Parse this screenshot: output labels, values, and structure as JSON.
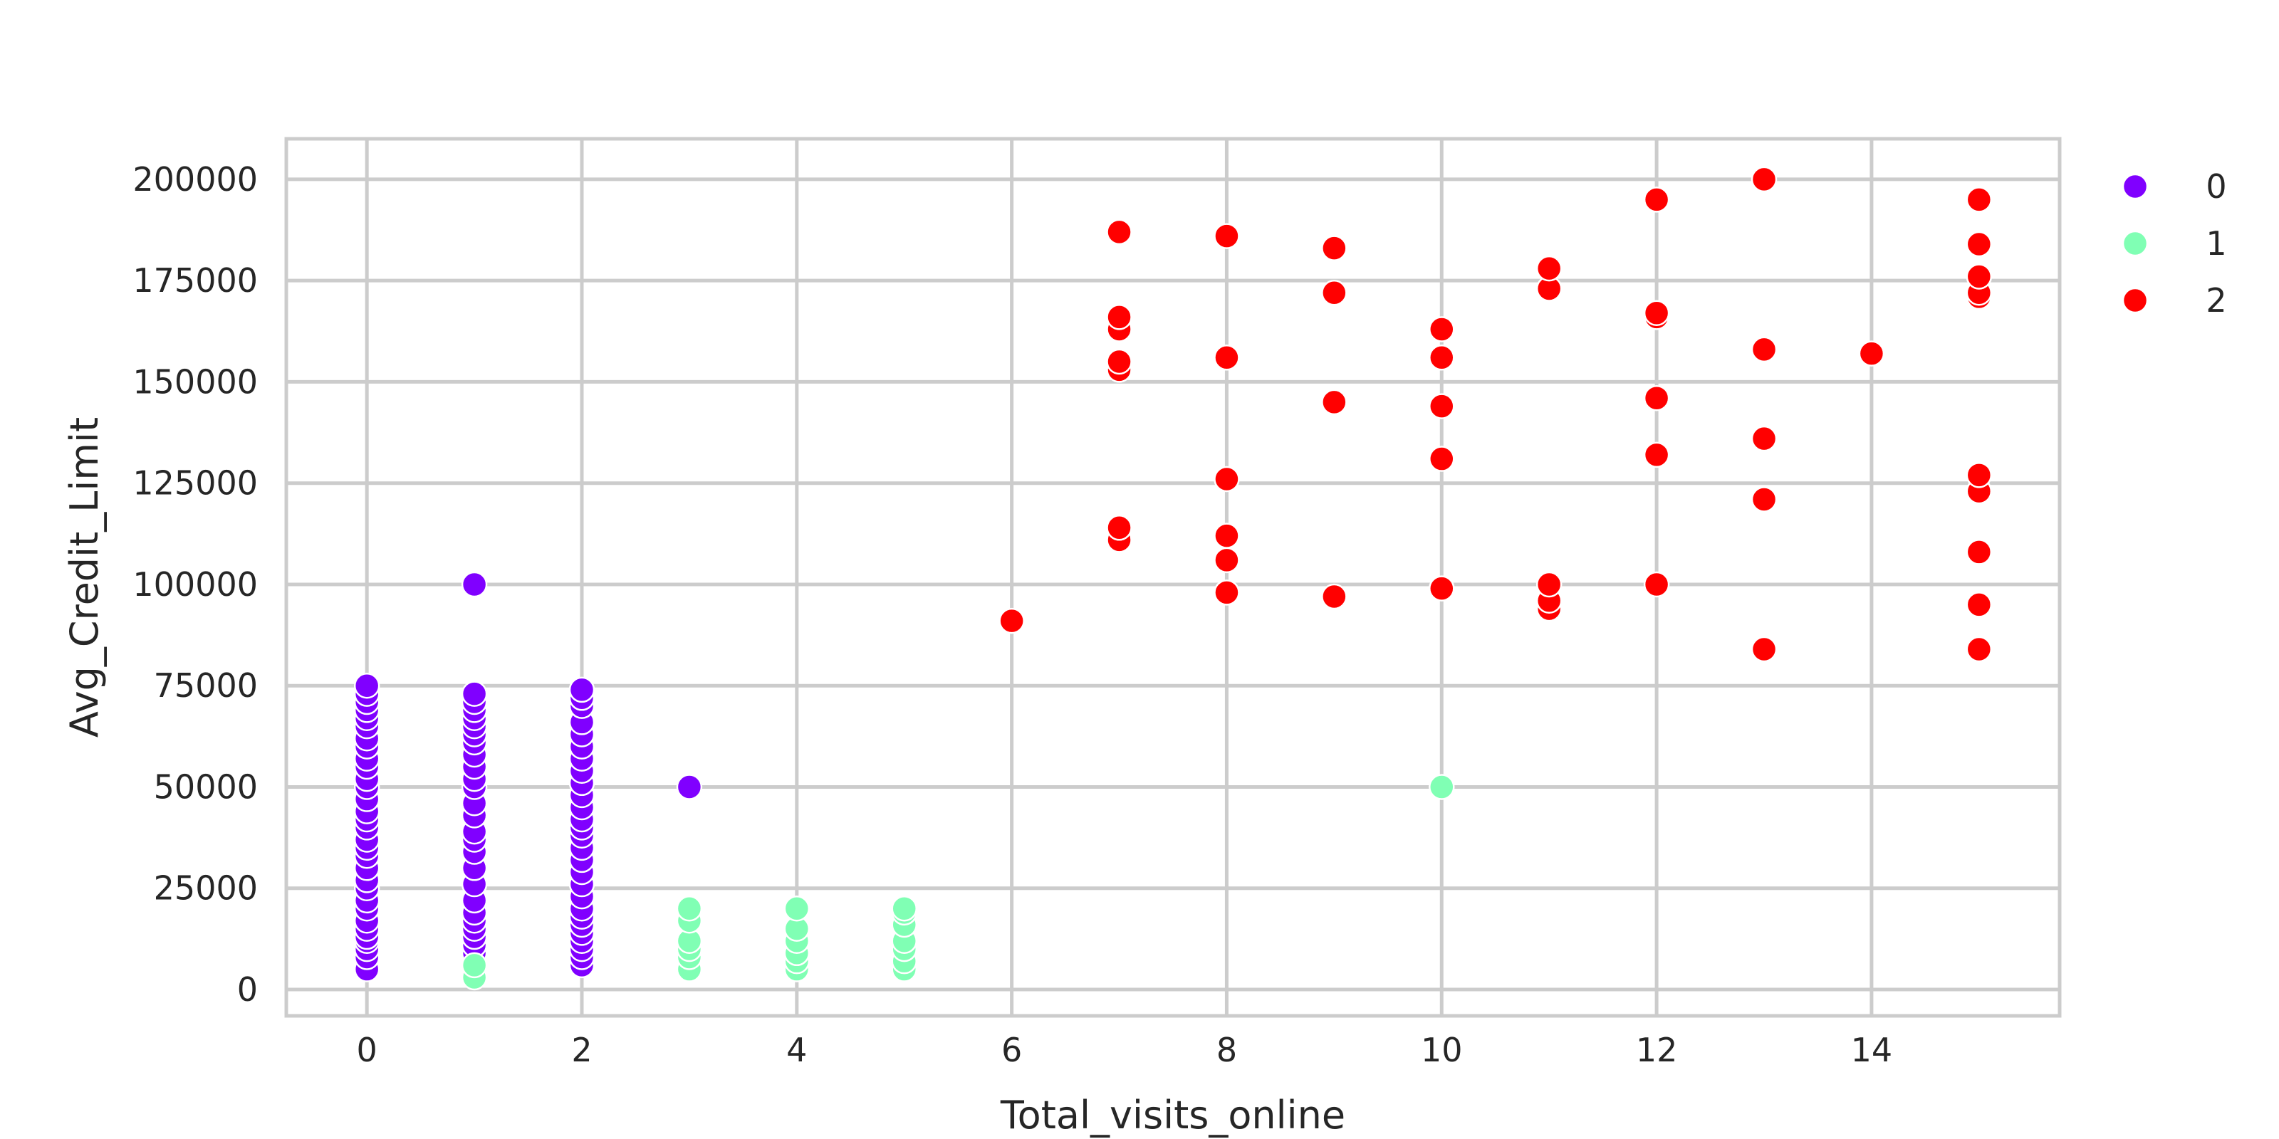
{
  "chart_data": {
    "type": "scatter",
    "title": "",
    "xlabel": "Total_visits_online",
    "ylabel": "Avg_Credit_Limit",
    "xlim": [
      -0.75,
      15.75
    ],
    "ylim": [
      -6500,
      210000
    ],
    "xticks": [
      0,
      2,
      4,
      6,
      8,
      10,
      12,
      14
    ],
    "yticks": [
      0,
      25000,
      50000,
      75000,
      100000,
      125000,
      150000,
      175000,
      200000
    ],
    "grid": true,
    "legend": {
      "placement": "outside-top-right",
      "entries": [
        "0",
        "1",
        "2"
      ]
    },
    "series": [
      {
        "name": "0",
        "color": "#8000ff",
        "points": [
          [
            0,
            5000
          ],
          [
            0,
            8000
          ],
          [
            0,
            10000
          ],
          [
            0,
            12000
          ],
          [
            0,
            13000
          ],
          [
            0,
            15000
          ],
          [
            0,
            17000
          ],
          [
            0,
            20000
          ],
          [
            0,
            22000
          ],
          [
            0,
            25000
          ],
          [
            0,
            27000
          ],
          [
            0,
            30000
          ],
          [
            0,
            33000
          ],
          [
            0,
            35000
          ],
          [
            0,
            37000
          ],
          [
            0,
            40000
          ],
          [
            0,
            42000
          ],
          [
            0,
            44000
          ],
          [
            0,
            47000
          ],
          [
            0,
            50000
          ],
          [
            0,
            52000
          ],
          [
            0,
            55000
          ],
          [
            0,
            57000
          ],
          [
            0,
            60000
          ],
          [
            0,
            62000
          ],
          [
            0,
            65000
          ],
          [
            0,
            67000
          ],
          [
            0,
            69000
          ],
          [
            0,
            71000
          ],
          [
            0,
            73000
          ],
          [
            0,
            75000
          ],
          [
            1,
            5000
          ],
          [
            1,
            7000
          ],
          [
            1,
            9000
          ],
          [
            1,
            11000
          ],
          [
            1,
            13000
          ],
          [
            1,
            15000
          ],
          [
            1,
            17000
          ],
          [
            1,
            19000
          ],
          [
            1,
            22000
          ],
          [
            1,
            26000
          ],
          [
            1,
            30000
          ],
          [
            1,
            34000
          ],
          [
            1,
            37000
          ],
          [
            1,
            39000
          ],
          [
            1,
            43000
          ],
          [
            1,
            46000
          ],
          [
            1,
            50000
          ],
          [
            1,
            52000
          ],
          [
            1,
            55000
          ],
          [
            1,
            58000
          ],
          [
            1,
            61000
          ],
          [
            1,
            63000
          ],
          [
            1,
            65000
          ],
          [
            1,
            67000
          ],
          [
            1,
            69000
          ],
          [
            1,
            71000
          ],
          [
            1,
            73000
          ],
          [
            1,
            100000
          ],
          [
            2,
            6000
          ],
          [
            2,
            8000
          ],
          [
            2,
            10000
          ],
          [
            2,
            12000
          ],
          [
            2,
            14000
          ],
          [
            2,
            16000
          ],
          [
            2,
            18000
          ],
          [
            2,
            20000
          ],
          [
            2,
            23000
          ],
          [
            2,
            26000
          ],
          [
            2,
            29000
          ],
          [
            2,
            32000
          ],
          [
            2,
            35000
          ],
          [
            2,
            38000
          ],
          [
            2,
            40000
          ],
          [
            2,
            42000
          ],
          [
            2,
            45000
          ],
          [
            2,
            48000
          ],
          [
            2,
            51000
          ],
          [
            2,
            54000
          ],
          [
            2,
            57000
          ],
          [
            2,
            60000
          ],
          [
            2,
            63000
          ],
          [
            2,
            66000
          ],
          [
            2,
            70000
          ],
          [
            2,
            72000
          ],
          [
            2,
            74000
          ],
          [
            3,
            50000
          ]
        ]
      },
      {
        "name": "1",
        "color": "#80ffb4",
        "points": [
          [
            1,
            3000
          ],
          [
            1,
            6000
          ],
          [
            3,
            5000
          ],
          [
            3,
            8000
          ],
          [
            3,
            10000
          ],
          [
            3,
            12000
          ],
          [
            3,
            17000
          ],
          [
            3,
            20000
          ],
          [
            4,
            5000
          ],
          [
            4,
            7000
          ],
          [
            4,
            9000
          ],
          [
            4,
            12000
          ],
          [
            4,
            15000
          ],
          [
            4,
            20000
          ],
          [
            5,
            5000
          ],
          [
            5,
            7000
          ],
          [
            5,
            10000
          ],
          [
            5,
            12000
          ],
          [
            5,
            16000
          ],
          [
            5,
            19000
          ],
          [
            5,
            20000
          ],
          [
            10,
            50000
          ]
        ]
      },
      {
        "name": "2",
        "color": "#ff0000",
        "points": [
          [
            6,
            91000
          ],
          [
            7,
            111000
          ],
          [
            7,
            114000
          ],
          [
            7,
            153000
          ],
          [
            7,
            155000
          ],
          [
            7,
            163000
          ],
          [
            7,
            166000
          ],
          [
            7,
            187000
          ],
          [
            8,
            98000
          ],
          [
            8,
            106000
          ],
          [
            8,
            112000
          ],
          [
            8,
            126000
          ],
          [
            8,
            156000
          ],
          [
            8,
            186000
          ],
          [
            9,
            97000
          ],
          [
            9,
            145000
          ],
          [
            9,
            172000
          ],
          [
            9,
            183000
          ],
          [
            10,
            99000
          ],
          [
            10,
            131000
          ],
          [
            10,
            144000
          ],
          [
            10,
            156000
          ],
          [
            10,
            163000
          ],
          [
            11,
            94000
          ],
          [
            11,
            96000
          ],
          [
            11,
            100000
          ],
          [
            11,
            173000
          ],
          [
            11,
            178000
          ],
          [
            12,
            100000
          ],
          [
            12,
            132000
          ],
          [
            12,
            146000
          ],
          [
            12,
            166000
          ],
          [
            12,
            167000
          ],
          [
            12,
            195000
          ],
          [
            13,
            84000
          ],
          [
            13,
            121000
          ],
          [
            13,
            136000
          ],
          [
            13,
            158000
          ],
          [
            13,
            200000
          ],
          [
            14,
            157000
          ],
          [
            15,
            84000
          ],
          [
            15,
            95000
          ],
          [
            15,
            108000
          ],
          [
            15,
            123000
          ],
          [
            15,
            127000
          ],
          [
            15,
            171000
          ],
          [
            15,
            172000
          ],
          [
            15,
            176000
          ],
          [
            15,
            184000
          ],
          [
            15,
            195000
          ]
        ]
      }
    ]
  }
}
